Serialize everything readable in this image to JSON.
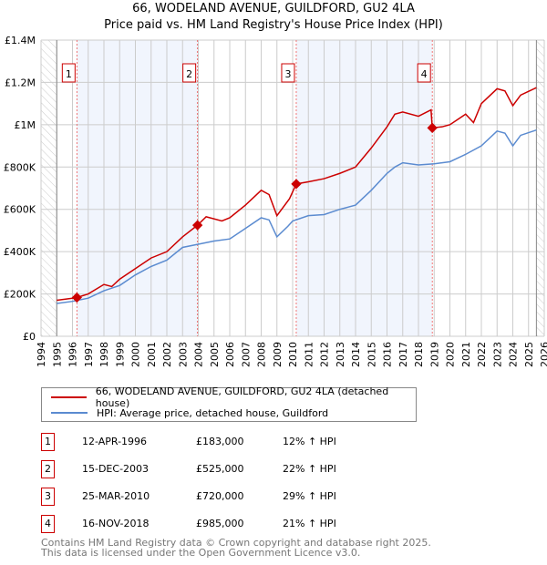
{
  "title": "66, WODELAND AVENUE, GUILDFORD, GU2 4LA",
  "subtitle": "Price paid vs. HM Land Registry's House Price Index (HPI)",
  "chart_data": {
    "type": "line",
    "title": "66, WODELAND AVENUE, GUILDFORD, GU2 4LA",
    "subtitle": "Price paid vs. HM Land Registry's House Price Index (HPI)",
    "xlim": [
      1994,
      2026
    ],
    "ylim": [
      0,
      1400000
    ],
    "x_ticks": [
      "1994",
      "1995",
      "1996",
      "1997",
      "1998",
      "1999",
      "2000",
      "2001",
      "2002",
      "2003",
      "2004",
      "2005",
      "2006",
      "2007",
      "2008",
      "2009",
      "2010",
      "2011",
      "2012",
      "2013",
      "2014",
      "2015",
      "2016",
      "2017",
      "2018",
      "2019",
      "2020",
      "2021",
      "2022",
      "2023",
      "2024",
      "2025",
      "2026"
    ],
    "y_ticks": [
      {
        "v": 0,
        "label": "£0"
      },
      {
        "v": 200000,
        "label": "£200K"
      },
      {
        "v": 400000,
        "label": "£400K"
      },
      {
        "v": 600000,
        "label": "£600K"
      },
      {
        "v": 800000,
        "label": "£800K"
      },
      {
        "v": 1000000,
        "label": "£1M"
      },
      {
        "v": 1200000,
        "label": "£1.2M"
      },
      {
        "v": 1400000,
        "label": "£1.4M"
      }
    ],
    "grid": true,
    "series": [
      {
        "name": "66, WODELAND AVENUE, GUILDFORD, GU2 4LA (detached house)",
        "color": "#cc0000",
        "x": [
          1995,
          1996,
          1996.28,
          1997,
          1998,
          1998.5,
          1999,
          2000,
          2001,
          2002,
          2003,
          2003.95,
          2004.5,
          2005.5,
          2006,
          2007,
          2008,
          2008.5,
          2009,
          2009.8,
          2010.23,
          2011,
          2012,
          2013,
          2014,
          2015,
          2016,
          2016.5,
          2017,
          2018,
          2018.8,
          2018.88,
          2019.5,
          2020,
          2021,
          2021.5,
          2022,
          2023,
          2023.5,
          2024,
          2024.5,
          2025.5
        ],
        "y": [
          170000,
          180000,
          183000,
          200000,
          245000,
          235000,
          270000,
          320000,
          370000,
          400000,
          470000,
          525000,
          565000,
          545000,
          560000,
          620000,
          690000,
          670000,
          570000,
          650000,
          720000,
          730000,
          745000,
          770000,
          800000,
          890000,
          990000,
          1050000,
          1060000,
          1040000,
          1070000,
          985000,
          990000,
          1000000,
          1050000,
          1010000,
          1100000,
          1170000,
          1160000,
          1090000,
          1140000,
          1175000
        ]
      },
      {
        "name": "HPI: Average price, detached house, Guildford",
        "color": "#5b8bd0",
        "x": [
          1995,
          1996,
          1997,
          1998,
          1999,
          2000,
          2001,
          2002,
          2003,
          2004,
          2005,
          2006,
          2007,
          2008,
          2008.5,
          2009,
          2009.7,
          2010,
          2011,
          2012,
          2013,
          2014,
          2015,
          2016,
          2016.5,
          2017,
          2018,
          2019,
          2020,
          2021,
          2022,
          2023,
          2023.5,
          2024,
          2024.5,
          2025.5
        ],
        "y": [
          155000,
          165000,
          180000,
          215000,
          240000,
          290000,
          330000,
          360000,
          420000,
          435000,
          450000,
          460000,
          510000,
          560000,
          550000,
          470000,
          520000,
          545000,
          570000,
          575000,
          600000,
          620000,
          690000,
          770000,
          800000,
          820000,
          810000,
          815000,
          825000,
          860000,
          900000,
          970000,
          960000,
          900000,
          950000,
          975000
        ]
      }
    ],
    "sales": [
      {
        "n": "1",
        "x": 1996.28,
        "date": "12-APR-1996",
        "price": "£183,000",
        "value": 183000,
        "hpi": "12% ↑ HPI"
      },
      {
        "n": "2",
        "x": 2003.95,
        "date": "15-DEC-2003",
        "price": "£525,000",
        "value": 525000,
        "hpi": "22% ↑ HPI"
      },
      {
        "n": "3",
        "x": 2010.23,
        "date": "25-MAR-2010",
        "price": "£720,000",
        "value": 720000,
        "hpi": "29% ↑ HPI"
      },
      {
        "n": "4",
        "x": 2018.88,
        "date": "16-NOV-2018",
        "price": "£985,000",
        "value": 985000,
        "hpi": "21% ↑ HPI"
      }
    ],
    "legend_position": "below"
  },
  "footer": {
    "line1": "Contains HM Land Registry data © Crown copyright and database right 2025.",
    "line2": "This data is licensed under the Open Government Licence v3.0."
  }
}
